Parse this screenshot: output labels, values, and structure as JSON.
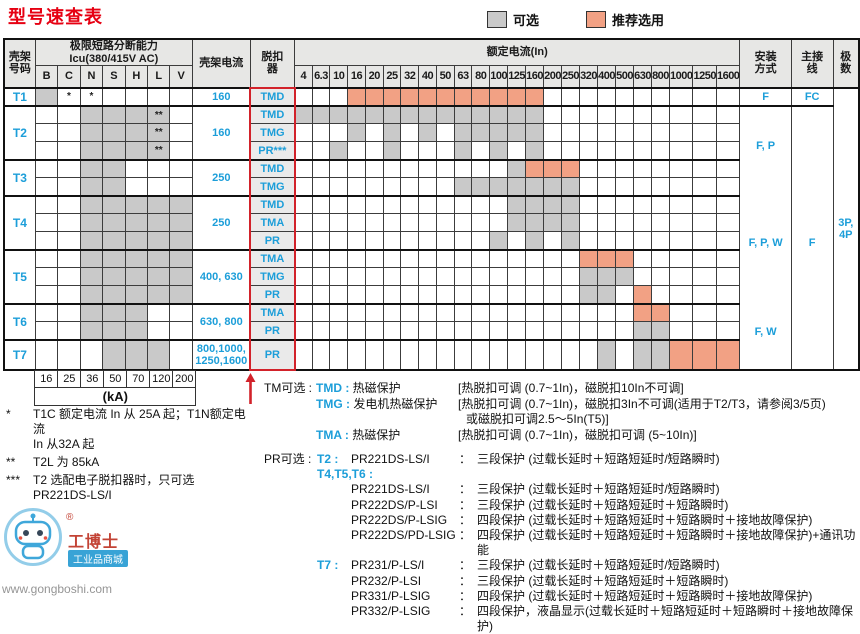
{
  "title": "型号速查表",
  "legend": [
    {
      "label": "可选",
      "color": "#c9c9c9"
    },
    {
      "label": "推荐选用",
      "color": "#f2a184"
    }
  ],
  "table": {
    "header": {
      "frame_col": "壳架\n号码",
      "icu_title": "极限短路分断能力",
      "icu_subtitle": "Icu(380/415V AC)",
      "frame_current": "壳架电流",
      "trip_unit": "脱扣\n器",
      "rated_current": "额定电流(In)",
      "install": "安装\n方式",
      "wiring": "主接\n线",
      "poles": "极\n数"
    },
    "icu_columns": [
      "B",
      "C",
      "N",
      "S",
      "H",
      "L",
      "V"
    ],
    "in_columns": [
      "4",
      "6.3",
      "10",
      "16",
      "20",
      "25",
      "32",
      "40",
      "50",
      "63",
      "80",
      "100",
      "125",
      "160",
      "200",
      "250",
      "320",
      "400",
      "500",
      "630",
      "800",
      "1000",
      "1250",
      "1600"
    ],
    "frames": [
      {
        "id": "T1",
        "current": "160",
        "rows": [
          {
            "trip": "TMD",
            "icu": [
              "g",
              "*",
              "*",
              "",
              "",
              "",
              ""
            ],
            "in": [
              0,
              0,
              0,
              2,
              2,
              2,
              2,
              2,
              2,
              2,
              2,
              2,
              2,
              2,
              0,
              0,
              0,
              0,
              0,
              0,
              0,
              0,
              0,
              0
            ]
          }
        ]
      },
      {
        "id": "T2",
        "current": "160",
        "rows": [
          {
            "trip": "TMD",
            "icu": [
              "",
              "",
              "g",
              "g",
              "g",
              "g**",
              ""
            ],
            "in": [
              1,
              1,
              1,
              1,
              1,
              1,
              1,
              1,
              1,
              1,
              1,
              1,
              1,
              1,
              0,
              0,
              0,
              0,
              0,
              0,
              0,
              0,
              0,
              0
            ]
          },
          {
            "trip": "TMG",
            "icu": [
              "",
              "",
              "g",
              "g",
              "g",
              "g**",
              ""
            ],
            "in": [
              0,
              0,
              0,
              1,
              0,
              1,
              0,
              1,
              0,
              1,
              1,
              1,
              1,
              1,
              0,
              0,
              0,
              0,
              0,
              0,
              0,
              0,
              0,
              0
            ]
          },
          {
            "trip": "PR***",
            "icu": [
              "",
              "",
              "g",
              "g",
              "g",
              "g**",
              ""
            ],
            "in": [
              0,
              0,
              1,
              0,
              0,
              1,
              0,
              0,
              0,
              1,
              0,
              1,
              0,
              1,
              0,
              0,
              0,
              0,
              0,
              0,
              0,
              0,
              0,
              0
            ]
          }
        ]
      },
      {
        "id": "T3",
        "current": "250",
        "rows": [
          {
            "trip": "TMD",
            "icu": [
              "",
              "",
              "g",
              "g",
              "",
              "",
              ""
            ],
            "in": [
              0,
              0,
              0,
              0,
              0,
              0,
              0,
              0,
              0,
              0,
              0,
              0,
              1,
              2,
              2,
              2,
              0,
              0,
              0,
              0,
              0,
              0,
              0,
              0
            ]
          },
          {
            "trip": "TMG",
            "icu": [
              "",
              "",
              "g",
              "g",
              "",
              "",
              ""
            ],
            "in": [
              0,
              0,
              0,
              0,
              0,
              0,
              0,
              0,
              0,
              1,
              1,
              1,
              1,
              1,
              1,
              1,
              0,
              0,
              0,
              0,
              0,
              0,
              0,
              0
            ]
          }
        ]
      },
      {
        "id": "T4",
        "current": "250",
        "rows": [
          {
            "trip": "TMD",
            "icu": [
              "",
              "",
              "g",
              "g",
              "g",
              "g",
              "g"
            ],
            "in": [
              0,
              0,
              0,
              0,
              0,
              0,
              0,
              0,
              0,
              0,
              0,
              0,
              1,
              1,
              1,
              1,
              0,
              0,
              0,
              0,
              0,
              0,
              0,
              0
            ]
          },
          {
            "trip": "TMA",
            "icu": [
              "",
              "",
              "g",
              "g",
              "g",
              "g",
              "g"
            ],
            "in": [
              0,
              0,
              0,
              0,
              0,
              0,
              0,
              0,
              0,
              0,
              0,
              0,
              1,
              1,
              1,
              1,
              0,
              0,
              0,
              0,
              0,
              0,
              0,
              0
            ]
          },
          {
            "trip": "PR",
            "icu": [
              "",
              "",
              "g",
              "g",
              "g",
              "g",
              "g"
            ],
            "in": [
              0,
              0,
              0,
              0,
              0,
              0,
              0,
              0,
              0,
              0,
              0,
              1,
              0,
              1,
              0,
              1,
              0,
              0,
              0,
              0,
              0,
              0,
              0,
              0
            ]
          }
        ]
      },
      {
        "id": "T5",
        "current": "400, 630",
        "rows": [
          {
            "trip": "TMA",
            "icu": [
              "",
              "",
              "g",
              "g",
              "g",
              "g",
              "g"
            ],
            "in": [
              0,
              0,
              0,
              0,
              0,
              0,
              0,
              0,
              0,
              0,
              0,
              0,
              0,
              0,
              0,
              0,
              2,
              2,
              2,
              0,
              0,
              0,
              0,
              0
            ]
          },
          {
            "trip": "TMG",
            "icu": [
              "",
              "",
              "g",
              "g",
              "g",
              "g",
              "g"
            ],
            "in": [
              0,
              0,
              0,
              0,
              0,
              0,
              0,
              0,
              0,
              0,
              0,
              0,
              0,
              0,
              0,
              0,
              1,
              1,
              1,
              0,
              0,
              0,
              0,
              0
            ]
          },
          {
            "trip": "PR",
            "icu": [
              "",
              "",
              "g",
              "g",
              "g",
              "g",
              "g"
            ],
            "in": [
              0,
              0,
              0,
              0,
              0,
              0,
              0,
              0,
              0,
              0,
              0,
              0,
              0,
              0,
              0,
              0,
              1,
              1,
              0,
              2,
              0,
              0,
              0,
              0
            ]
          }
        ]
      },
      {
        "id": "T6",
        "current": "630, 800",
        "rows": [
          {
            "trip": "TMA",
            "icu": [
              "",
              "",
              "g",
              "g",
              "g",
              "",
              ""
            ],
            "in": [
              0,
              0,
              0,
              0,
              0,
              0,
              0,
              0,
              0,
              0,
              0,
              0,
              0,
              0,
              0,
              0,
              0,
              0,
              0,
              2,
              2,
              0,
              0,
              0
            ]
          },
          {
            "trip": "PR",
            "icu": [
              "",
              "",
              "g",
              "g",
              "g",
              "",
              ""
            ],
            "in": [
              0,
              0,
              0,
              0,
              0,
              0,
              0,
              0,
              0,
              0,
              0,
              0,
              0,
              0,
              0,
              0,
              0,
              0,
              0,
              1,
              1,
              0,
              0,
              0
            ]
          }
        ]
      },
      {
        "id": "T7",
        "current": "800,1000,\n1250,1600",
        "rows": [
          {
            "trip": "PR",
            "icu": [
              "",
              "",
              "",
              "g",
              "g",
              "g",
              ""
            ],
            "in": [
              0,
              0,
              0,
              0,
              0,
              0,
              0,
              0,
              0,
              0,
              0,
              0,
              0,
              0,
              0,
              0,
              0,
              1,
              0,
              1,
              1,
              2,
              2,
              2
            ]
          }
        ]
      }
    ]
  },
  "right": {
    "install": {
      "t1": "F",
      "groups": [
        {
          "label": "F, P"
        },
        {
          "label": "F, P, W"
        },
        {
          "label": "F, W"
        }
      ]
    },
    "wiring": {
      "t1": "FC",
      "rest": "F"
    },
    "poles": "3P,\n4P"
  },
  "ka_scale": {
    "values": [
      "16",
      "25",
      "36",
      "50",
      "70",
      "120",
      "200"
    ],
    "unit": "(kA)"
  },
  "footnotes": [
    {
      "mark": "*",
      "text": "T1C 额定电流 In 从 25A 起；T1N额定电流\nIn 从32A 起"
    },
    {
      "mark": "**",
      "text": "T2L 为 85kA"
    },
    {
      "mark": "***",
      "text": "T2 选配电子脱扣器时，只可选\nPR221DS-LS/I"
    }
  ],
  "notes": {
    "tm": {
      "label": "TM可选 :",
      "items": [
        {
          "name": "TMD :",
          "desc": "热磁保护",
          "note": "[热脱扣可调 (0.7~1In)，磁脱扣10In不可调]"
        },
        {
          "name": "TMG :",
          "desc": "发电机热磁保护",
          "note": "[热脱扣可调 (0.7~1In)，磁脱扣3In不可调(适用于T2/T3，请参阅3/5页)",
          "note2": "或磁脱扣可调2.5～5In(T5)]"
        },
        {
          "name": "TMA :",
          "desc": "热磁保护",
          "note": "[热脱扣可调 (0.7~1In)，磁脱扣可调 (5~10In)]"
        }
      ]
    },
    "pr": {
      "label": "PR可选 :",
      "rows": [
        {
          "lead": "PR可选 :",
          "tag": "T2 :",
          "name": "PR221DS-LS/I",
          "colon": "：",
          "desc": "三段保护 (过载长延时＋短路短延时/短路瞬时)"
        },
        {
          "header": "T4,T5,T6 :"
        },
        {
          "name": "PR221DS-LS/I",
          "colon": "：",
          "desc": "三段保护 (过载长延时＋短路短延时/短路瞬时)"
        },
        {
          "name": "PR222DS/P-LSI",
          "colon": "：",
          "desc": "三段保护 (过载长延时＋短路短延时＋短路瞬时)"
        },
        {
          "name": "PR222DS/P-LSIG",
          "colon": "：",
          "desc": "四段保护 (过载长延时＋短路短延时＋短路瞬时＋接地故障保护)"
        },
        {
          "name": "PR222DS/PD-LSIG",
          "colon": "：",
          "desc": "四段保护 (过载长延时＋短路短延时＋短路瞬时＋接地故障保护)+通讯功能"
        },
        {
          "tag": "T7 :",
          "name": "PR231/P-LS/I",
          "colon": "：",
          "desc": "三段保护 (过载长延时＋短路短延时/短路瞬时)"
        },
        {
          "name": "PR232/P-LSI",
          "colon": "：",
          "desc": "三段保护 (过载长延时＋短路短延时＋短路瞬时)"
        },
        {
          "name": "PR331/P-LSIG",
          "colon": "：",
          "desc": "四段保护 (过载长延时＋短路短延时＋短路瞬时＋接地故障保护)"
        },
        {
          "name": "PR332/P-LSIG",
          "colon": "：",
          "desc": "四段保护，液晶显示(过载长延时＋短路短延时＋短路瞬时＋接地故障保护)"
        }
      ]
    }
  },
  "watermark": {
    "brand": "工博士",
    "reg": "®",
    "tagline": "工业品商城",
    "url": "www.gongboshi.com"
  }
}
